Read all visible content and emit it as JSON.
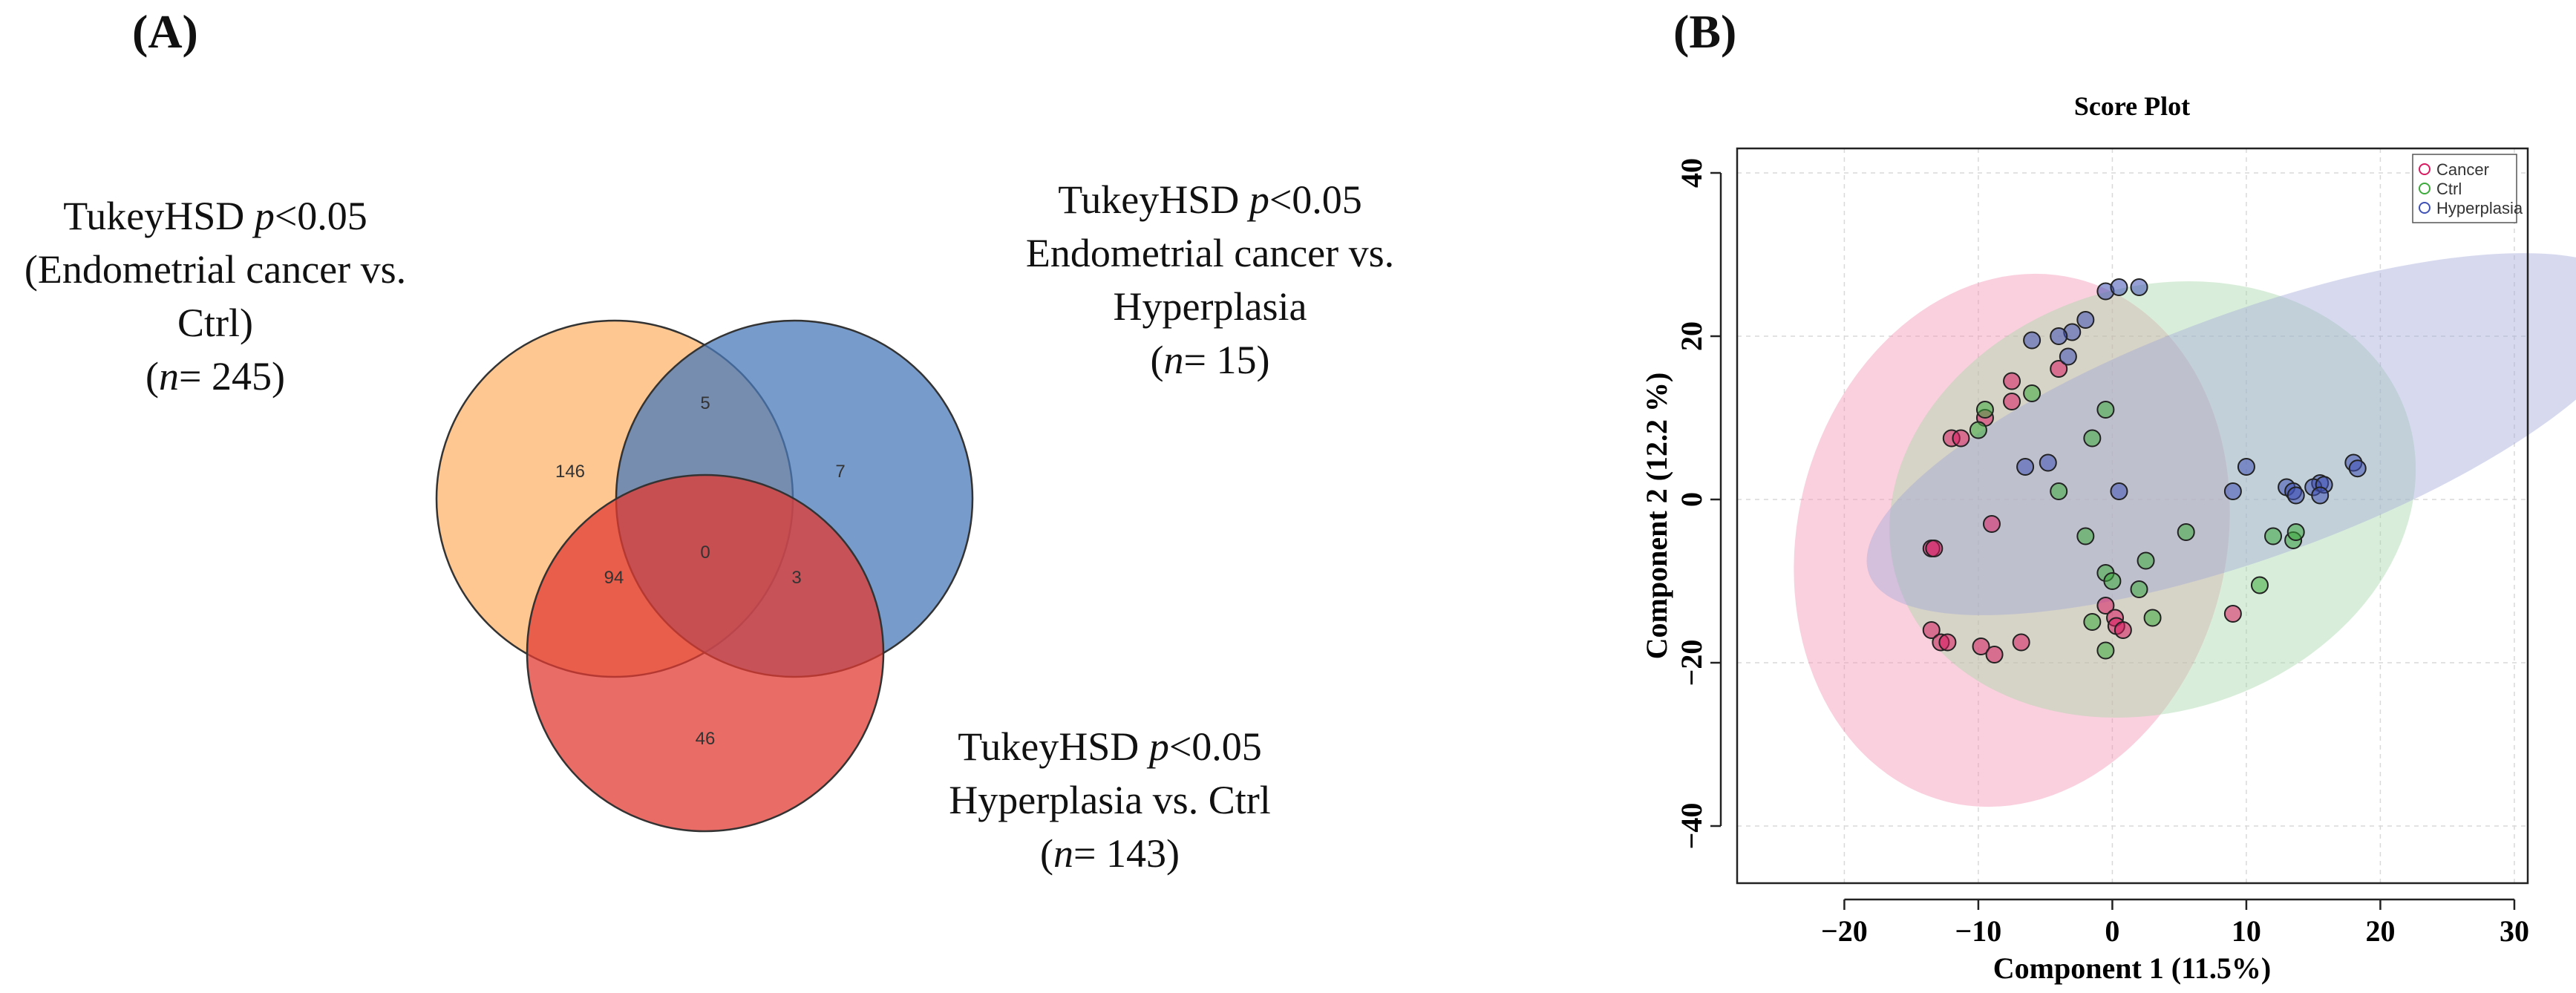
{
  "panel_a": {
    "label": "(A)",
    "set_labels": [
      {
        "line1": "TukeyHSD ",
        "p": "p",
        "rest": "<0.05",
        "line2": "(Endometrial cancer vs.",
        "line3": "Ctrl)",
        "n_prefix": "n",
        "n_value": "= 245"
      },
      {
        "line1": "TukeyHSD ",
        "p": "p",
        "rest": "<0.05",
        "line2": "Endometrial cancer vs.",
        "line3": "Hyperplasia",
        "n_prefix": "n",
        "n_value": "= 15"
      },
      {
        "line1": "TukeyHSD ",
        "p": "p",
        "rest": "<0.05",
        "line2": "Hyperplasia vs. Ctrl",
        "n_prefix": "n",
        "n_value": "= 143"
      }
    ],
    "regions": {
      "only_a": "146",
      "ab": "5",
      "only_b": "7",
      "ac": "94",
      "abc": "0",
      "bc": "3",
      "only_c": "46"
    },
    "colors": {
      "a": "#fdb36b",
      "b": "#4a79b9",
      "c": "#e23b33"
    }
  },
  "panel_b": {
    "label": "(B)"
  },
  "chart_data": {
    "type": "scatter",
    "title": "Score Plot",
    "xlabel": "Component  1 (11.5%)",
    "ylabel": "Component  2 (12.2 %)",
    "xlim": [
      -28,
      31
    ],
    "ylim": [
      -47,
      43
    ],
    "xticks": [
      -20,
      -10,
      0,
      10,
      20,
      30
    ],
    "xtick_labels": [
      "−20",
      "−10",
      "0",
      "10",
      "20",
      "30"
    ],
    "yticks": [
      -40,
      -20,
      0,
      20,
      40
    ],
    "ytick_labels": [
      "−40",
      "−20",
      "0",
      "20",
      "40"
    ],
    "grid": true,
    "legend_position": "top-right",
    "series": [
      {
        "name": "Cancer",
        "color": "#d81b60",
        "ellipse_color": "#f48fb1",
        "ellipse": {
          "cx": -7.5,
          "cy": -5,
          "rx": 16,
          "ry": 33,
          "angle_deg": 14
        },
        "points": [
          [
            -4,
            16
          ],
          [
            -7.5,
            14.5
          ],
          [
            -7.5,
            12
          ],
          [
            -12,
            7.5
          ],
          [
            -11.3,
            7.5
          ],
          [
            -9.5,
            10
          ],
          [
            -9,
            -3
          ],
          [
            -13.5,
            -6
          ],
          [
            -13.3,
            -6
          ],
          [
            -13.5,
            -16
          ],
          [
            -12.8,
            -17.5
          ],
          [
            -12.3,
            -17.5
          ],
          [
            -9.8,
            -18
          ],
          [
            -8.8,
            -19
          ],
          [
            -6.8,
            -17.5
          ],
          [
            -0.5,
            -13
          ],
          [
            0.2,
            -14.5
          ],
          [
            0.3,
            -15.5
          ],
          [
            0.8,
            -16
          ],
          [
            9,
            -14
          ]
        ]
      },
      {
        "name": "Ctrl",
        "color": "#3caa3c",
        "ellipse_color": "#a5d6a7",
        "ellipse": {
          "cx": 3,
          "cy": 0,
          "rx": 20,
          "ry": 26,
          "angle_deg": -18
        },
        "points": [
          [
            -9.5,
            11
          ],
          [
            -10,
            8.5
          ],
          [
            -6,
            13
          ],
          [
            -0.5,
            11
          ],
          [
            -1.5,
            7.5
          ],
          [
            -4,
            1
          ],
          [
            -2,
            -4.5
          ],
          [
            -0.5,
            -9
          ],
          [
            0,
            -10
          ],
          [
            2,
            -11
          ],
          [
            2.5,
            -7.5
          ],
          [
            5.5,
            -4
          ],
          [
            3,
            -14.5
          ],
          [
            -1.5,
            -15
          ],
          [
            -0.5,
            -18.5
          ],
          [
            11,
            -10.5
          ],
          [
            12,
            -4.5
          ],
          [
            13.5,
            -5
          ],
          [
            13.7,
            -4
          ]
        ]
      },
      {
        "name": "Hyperplasia",
        "color": "#3f51b5",
        "ellipse_color": "#9fa8da",
        "ellipse": {
          "cx": 10.5,
          "cy": 8,
          "rx": 30.5,
          "ry": 15,
          "angle_deg": -20
        },
        "points": [
          [
            -0.5,
            25.5
          ],
          [
            0.5,
            26
          ],
          [
            2,
            26
          ],
          [
            -2,
            22
          ],
          [
            -3,
            20.5
          ],
          [
            -4,
            20
          ],
          [
            -6,
            19.5
          ],
          [
            -3.3,
            17.5
          ],
          [
            -6.5,
            4
          ],
          [
            -4.8,
            4.5
          ],
          [
            0.5,
            1
          ],
          [
            9,
            1
          ],
          [
            10,
            4
          ],
          [
            13,
            1.5
          ],
          [
            13.5,
            1
          ],
          [
            13.7,
            0.5
          ],
          [
            15.5,
            2
          ],
          [
            15,
            1.5
          ],
          [
            15.8,
            1.8
          ],
          [
            18,
            4.5
          ],
          [
            18.3,
            3.8
          ],
          [
            15.5,
            0.5
          ]
        ]
      }
    ]
  }
}
